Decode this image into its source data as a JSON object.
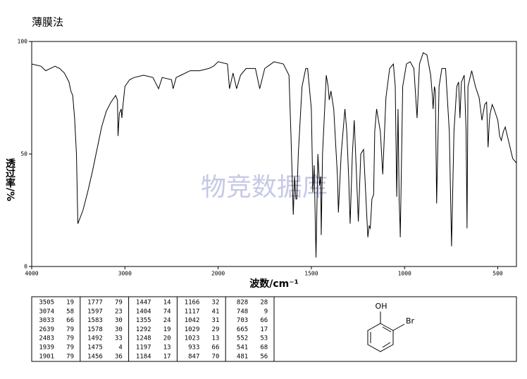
{
  "title": "薄膜法",
  "watermark": "物竞数据库",
  "chart_data": {
    "type": "line",
    "xlabel": "波数/cm⁻¹",
    "ylabel": "透过率/%",
    "xlim": [
      4000,
      400
    ],
    "ylim": [
      0,
      100
    ],
    "xticks": [
      4000,
      3000,
      2000,
      1500,
      1000,
      500
    ],
    "yticks": [
      0,
      50,
      100
    ],
    "series": [
      {
        "color": "#000000",
        "x": [
          4000,
          3900,
          3850,
          3800,
          3750,
          3700,
          3650,
          3600,
          3580,
          3560,
          3540,
          3520,
          3505,
          3450,
          3400,
          3350,
          3300,
          3250,
          3200,
          3150,
          3100,
          3080,
          3074,
          3060,
          3040,
          3033,
          3020,
          3000,
          2950,
          2900,
          2800,
          2700,
          2639,
          2600,
          2500,
          2483,
          2450,
          2400,
          2300,
          2200,
          2100,
          2050,
          2000,
          1950,
          1939,
          1920,
          1901,
          1880,
          1850,
          1800,
          1777,
          1750,
          1700,
          1650,
          1620,
          1610,
          1597,
          1590,
          1583,
          1578,
          1570,
          1550,
          1530,
          1520,
          1500,
          1492,
          1485,
          1475,
          1465,
          1456,
          1450,
          1447,
          1440,
          1420,
          1410,
          1404,
          1395,
          1380,
          1360,
          1355,
          1340,
          1320,
          1310,
          1300,
          1292,
          1280,
          1270,
          1260,
          1248,
          1235,
          1220,
          1210,
          1197,
          1190,
          1184,
          1175,
          1166,
          1160,
          1150,
          1130,
          1117,
          1100,
          1080,
          1060,
          1050,
          1042,
          1035,
          1029,
          1025,
          1023,
          1010,
          990,
          970,
          950,
          933,
          920,
          900,
          880,
          860,
          850,
          847,
          840,
          835,
          828,
          815,
          800,
          780,
          760,
          748,
          735,
          720,
          710,
          703,
          695,
          680,
          670,
          665,
          660,
          640,
          620,
          600,
          585,
          570,
          560,
          552,
          545,
          541,
          530,
          520,
          500,
          490,
          481,
          470,
          460,
          440,
          420,
          400
        ],
        "values": [
          90,
          89,
          87,
          88,
          89,
          88,
          86,
          82,
          78,
          76,
          66,
          50,
          19,
          25,
          33,
          42,
          52,
          62,
          69,
          73,
          76,
          74,
          58,
          68,
          70,
          66,
          72,
          80,
          83,
          84,
          85,
          84,
          79,
          84,
          83,
          79,
          84,
          85,
          87,
          87,
          88,
          89,
          91,
          90,
          79,
          86,
          79,
          85,
          88,
          88,
          79,
          88,
          91,
          90,
          85,
          60,
          23,
          40,
          30,
          30,
          50,
          80,
          88,
          88,
          70,
          33,
          45,
          4,
          50,
          36,
          40,
          14,
          50,
          85,
          80,
          74,
          78,
          70,
          40,
          24,
          50,
          70,
          60,
          40,
          19,
          50,
          65,
          45,
          20,
          50,
          52,
          35,
          13,
          18,
          17,
          30,
          32,
          60,
          70,
          60,
          41,
          75,
          88,
          90,
          80,
          31,
          70,
          29,
          20,
          13,
          80,
          90,
          91,
          88,
          66,
          90,
          95,
          94,
          85,
          75,
          70,
          80,
          78,
          28,
          80,
          88,
          88,
          60,
          9,
          60,
          80,
          82,
          66,
          82,
          85,
          60,
          17,
          80,
          87,
          80,
          75,
          65,
          72,
          73,
          53,
          65,
          68,
          72,
          70,
          65,
          58,
          56,
          60,
          62,
          55,
          48,
          46
        ]
      }
    ]
  },
  "peak_table": {
    "groups": [
      [
        [
          3505,
          19
        ],
        [
          3074,
          58
        ],
        [
          3033,
          66
        ],
        [
          2639,
          79
        ],
        [
          2483,
          79
        ],
        [
          1939,
          79
        ],
        [
          1901,
          79
        ]
      ],
      [
        [
          1777,
          79
        ],
        [
          1597,
          23
        ],
        [
          1583,
          30
        ],
        [
          1578,
          30
        ],
        [
          1492,
          33
        ],
        [
          1475,
          4
        ],
        [
          1456,
          36
        ]
      ],
      [
        [
          1447,
          14
        ],
        [
          1404,
          74
        ],
        [
          1355,
          24
        ],
        [
          1292,
          19
        ],
        [
          1248,
          20
        ],
        [
          1197,
          13
        ],
        [
          1184,
          17
        ]
      ],
      [
        [
          1166,
          32
        ],
        [
          1117,
          41
        ],
        [
          1042,
          31
        ],
        [
          1029,
          29
        ],
        [
          1023,
          13
        ],
        [
          933,
          66
        ],
        [
          847,
          70
        ]
      ],
      [
        [
          828,
          28
        ],
        [
          748,
          9
        ],
        [
          703,
          66
        ],
        [
          665,
          17
        ],
        [
          552,
          53
        ],
        [
          541,
          68
        ],
        [
          481,
          56
        ]
      ]
    ]
  },
  "structure": {
    "labels": [
      "OH",
      "Br"
    ]
  }
}
